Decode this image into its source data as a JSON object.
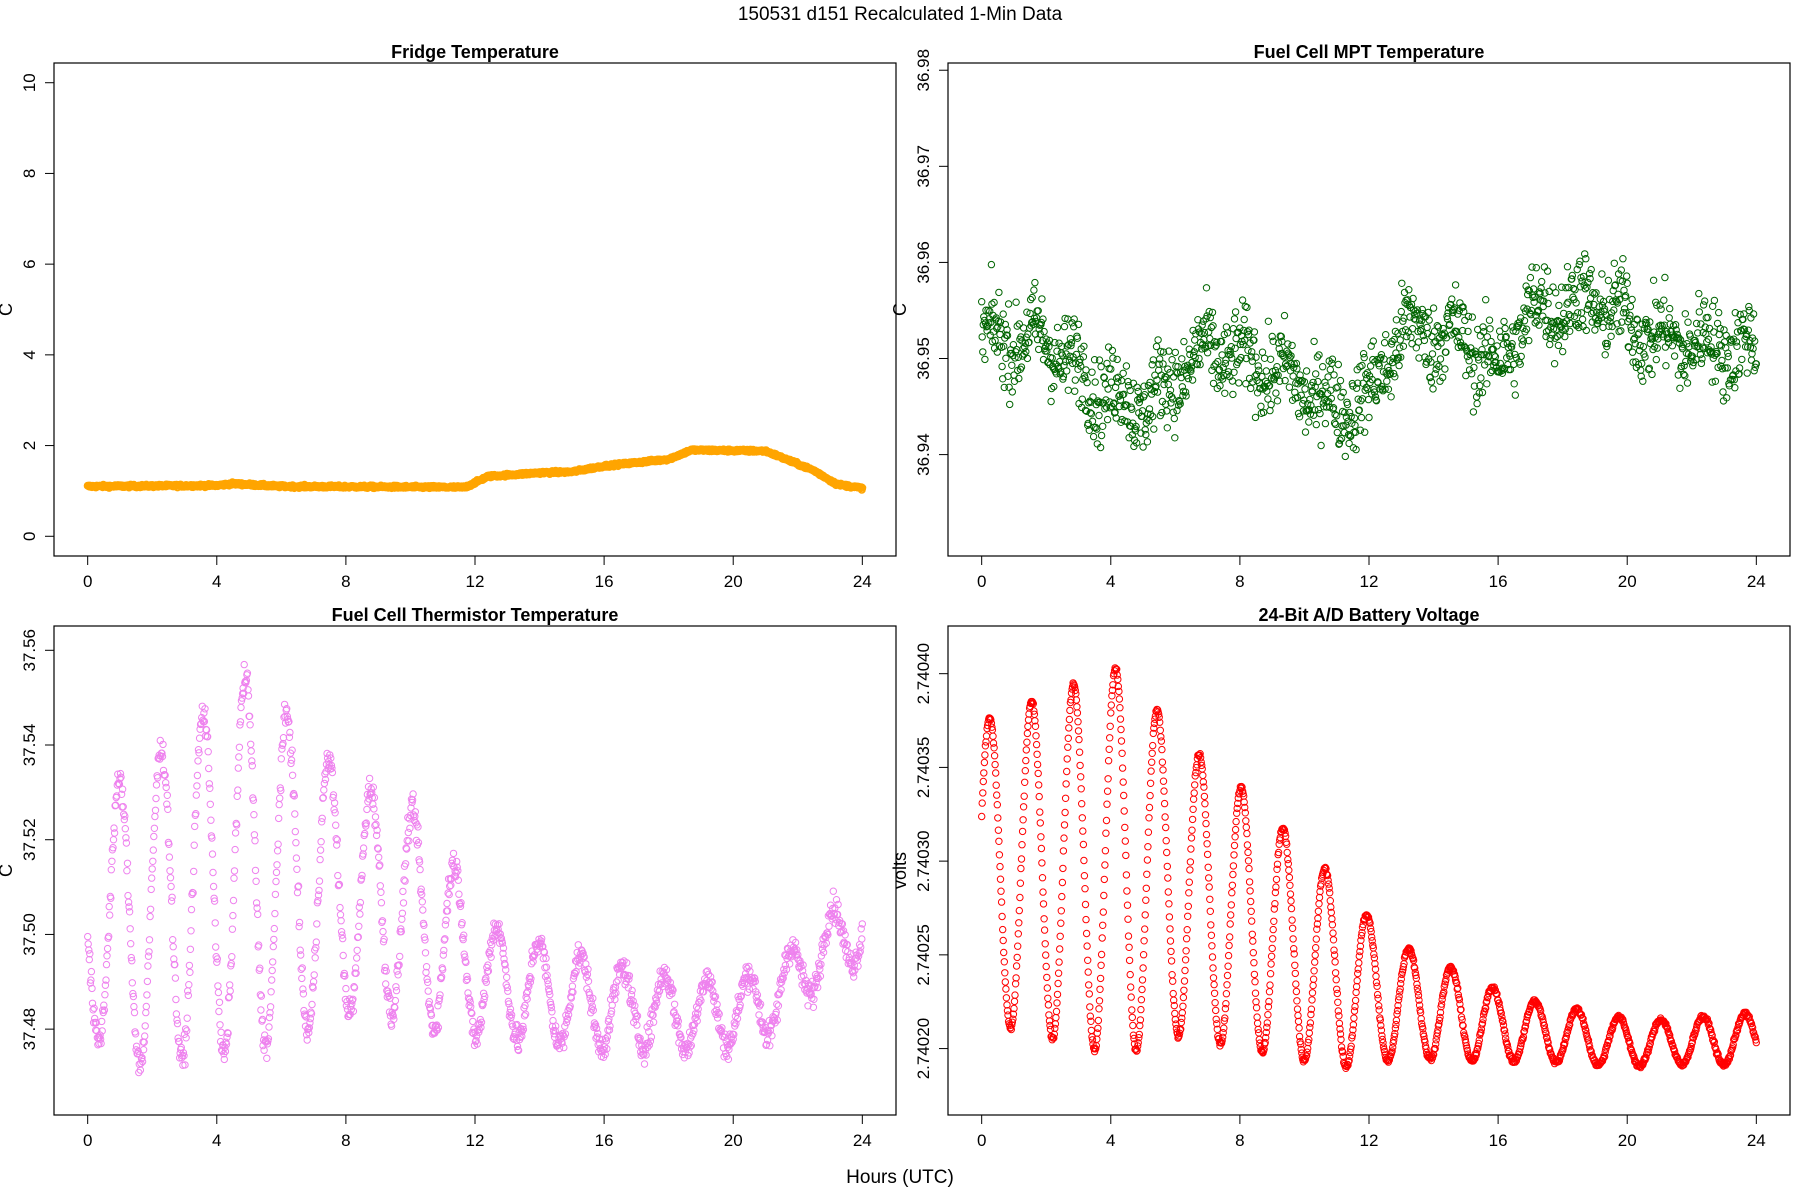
{
  "figure": {
    "title": "150531   d151   Recalculated 1-Min Data",
    "xcaption": "Hours (UTC)"
  },
  "chart_data": [
    {
      "type": "scatter",
      "title": "Fridge Temperature",
      "ylabel": "C",
      "color": "#FFA500",
      "xlim": [
        0,
        24
      ],
      "ylim": [
        0,
        10
      ],
      "xticks": [
        "0",
        "4",
        "8",
        "12",
        "16",
        "20",
        "24"
      ],
      "yticks": [
        "0",
        "2",
        "4",
        "6",
        "8",
        "10"
      ],
      "pattern": "piecewise",
      "knots": [
        [
          0,
          1.1
        ],
        [
          4,
          1.12
        ],
        [
          4.5,
          1.16
        ],
        [
          6,
          1.1
        ],
        [
          11.7,
          1.08
        ],
        [
          12.4,
          1.32
        ],
        [
          14,
          1.4
        ],
        [
          15,
          1.42
        ],
        [
          16,
          1.55
        ],
        [
          18,
          1.7
        ],
        [
          18.7,
          1.9
        ],
        [
          21,
          1.88
        ],
        [
          22.5,
          1.45
        ],
        [
          23.2,
          1.15
        ],
        [
          24,
          1.06
        ]
      ],
      "noise": 0.02
    },
    {
      "type": "scatter",
      "title": "Fuel Cell MPT Temperature",
      "ylabel": "C",
      "color": "#006400",
      "xlim": [
        0,
        24
      ],
      "ylim": [
        36.9315,
        36.9787
      ],
      "xticks": [
        "0",
        "4",
        "8",
        "12",
        "16",
        "20",
        "24"
      ],
      "yticks": [
        "36.94",
        "36.95",
        "36.96",
        "36.97",
        "36.98"
      ],
      "pattern": "noise",
      "knots": [
        [
          0,
          36.952
        ],
        [
          2,
          36.952
        ],
        [
          3.5,
          36.947
        ],
        [
          5,
          36.945
        ],
        [
          7,
          36.951
        ],
        [
          9,
          36.949
        ],
        [
          11,
          36.945
        ],
        [
          12,
          36.946
        ],
        [
          13,
          36.953
        ],
        [
          15,
          36.952
        ],
        [
          16,
          36.949
        ],
        [
          17,
          36.955
        ],
        [
          19,
          36.956
        ],
        [
          21,
          36.952
        ],
        [
          24,
          36.951
        ]
      ],
      "noise": 0.0055
    },
    {
      "type": "scatter",
      "title": "Fuel Cell Thermistor Temperature",
      "ylabel": "C",
      "color": "#EE82EE",
      "xlim": [
        0,
        24
      ],
      "ylim": [
        37.466,
        37.561
      ],
      "xticks": [
        "0",
        "4",
        "8",
        "12",
        "16",
        "20",
        "24"
      ],
      "yticks": [
        "37.48",
        "37.50",
        "37.52",
        "37.54",
        "37.56"
      ],
      "pattern": "oscillation",
      "period": 1.3,
      "phase": 0.65,
      "centers": [
        [
          0,
          37.5
        ],
        [
          2,
          37.505
        ],
        [
          5,
          37.515
        ],
        [
          7,
          37.51
        ],
        [
          10,
          37.505
        ],
        [
          12.5,
          37.49
        ],
        [
          16,
          37.485
        ],
        [
          19,
          37.483
        ],
        [
          21,
          37.485
        ],
        [
          22.5,
          37.495
        ],
        [
          24,
          37.503
        ]
      ],
      "amplitudes": [
        [
          0,
          0.02
        ],
        [
          1,
          0.03
        ],
        [
          5,
          0.04
        ],
        [
          6,
          0.035
        ],
        [
          8,
          0.025
        ],
        [
          11,
          0.02
        ],
        [
          12.5,
          0.012
        ],
        [
          17,
          0.008
        ],
        [
          22,
          0.007
        ],
        [
          24,
          0.008
        ]
      ],
      "noise": 0.002
    },
    {
      "type": "scatter",
      "title": "24-Bit A/D Battery Voltage",
      "ylabel": "volts",
      "color": "#FF0000",
      "xlim": [
        0,
        24
      ],
      "ylim": [
        2.740175,
        2.740415
      ],
      "xticks": [
        "0",
        "4",
        "8",
        "12",
        "16",
        "20",
        "24"
      ],
      "yticks": [
        "2.74020",
        "2.74025",
        "2.74030",
        "2.74035",
        "2.74040"
      ],
      "pattern": "oscillation",
      "period": 1.3,
      "phase": 0.08,
      "centers": [
        [
          0,
          2.740295
        ],
        [
          4.5,
          2.7403
        ],
        [
          8,
          2.74027
        ],
        [
          12,
          2.74023
        ],
        [
          16,
          2.740212
        ],
        [
          20,
          2.740203
        ],
        [
          24,
          2.740205
        ]
      ],
      "amplitudes": [
        [
          0,
          8e-05
        ],
        [
          4.4,
          0.000105
        ],
        [
          6,
          8e-05
        ],
        [
          8,
          7e-05
        ],
        [
          11,
          5e-05
        ],
        [
          13,
          3e-05
        ],
        [
          17,
          1.6e-05
        ],
        [
          21,
          1.2e-05
        ],
        [
          24,
          1.4e-05
        ]
      ],
      "noise": 8e-07
    }
  ]
}
